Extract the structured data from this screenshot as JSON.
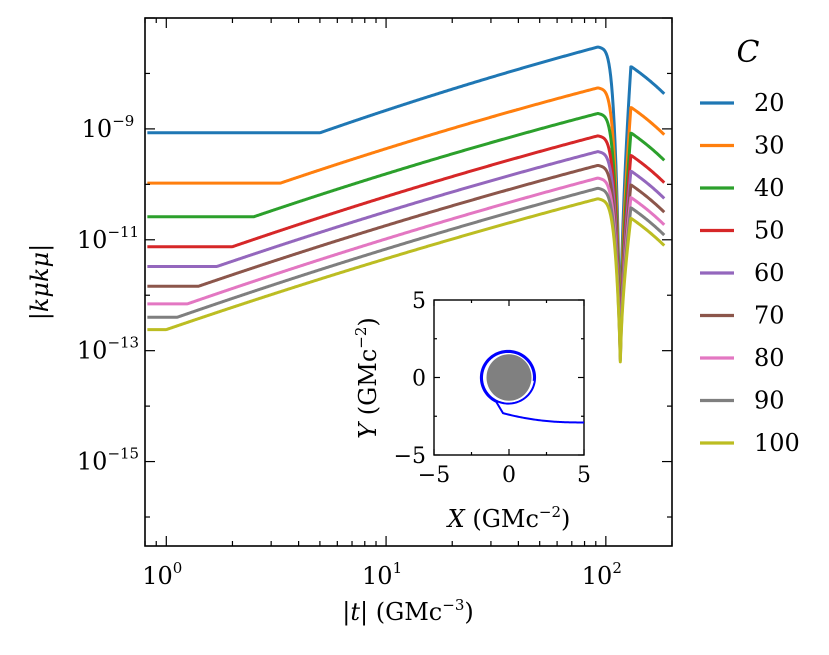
{
  "chart_data": [
    {
      "type": "line",
      "xscale": "log",
      "yscale": "log",
      "xlim": [
        0.8,
        200
      ],
      "ylim": [
        3e-17,
        1e-07
      ],
      "xlabel_pre": "|",
      "xlabel_var": "t",
      "xlabel_post": "| (GMc",
      "xlabel_exp": "−3",
      "xlabel_close": ")",
      "ylabel": "|kμkμ|",
      "x_ticks": [
        {
          "value": 1,
          "base": "10",
          "exp": "0"
        },
        {
          "value": 10,
          "base": "10",
          "exp": "1"
        },
        {
          "value": 100,
          "base": "10",
          "exp": "2"
        }
      ],
      "y_ticks": [
        {
          "value": 1e-09,
          "base": "10",
          "exp": "−9"
        },
        {
          "value": 1e-11,
          "base": "10",
          "exp": "−11"
        },
        {
          "value": 1e-13,
          "base": "10",
          "exp": "−13"
        },
        {
          "value": 1e-15,
          "base": "10",
          "exp": "−15"
        }
      ],
      "legend_title": "C",
      "legend_position": "outside-right",
      "series": [
        {
          "name": "20",
          "color": "#1f77b4",
          "plateau": 8.5e-10,
          "x_break": 5.0,
          "peak": 3e-08
        },
        {
          "name": "30",
          "color": "#ff7f0e",
          "plateau": 1.05e-10,
          "x_break": 3.3,
          "peak": 5.5e-09
        },
        {
          "name": "40",
          "color": "#2ca02c",
          "plateau": 2.6e-11,
          "x_break": 2.5,
          "peak": 1.9e-09
        },
        {
          "name": "50",
          "color": "#d62728",
          "plateau": 7.5e-12,
          "x_break": 2.0,
          "peak": 7.5e-10
        },
        {
          "name": "60",
          "color": "#9467bd",
          "plateau": 3.3e-12,
          "x_break": 1.7,
          "peak": 3.9e-10
        },
        {
          "name": "70",
          "color": "#8c564b",
          "plateau": 1.45e-12,
          "x_break": 1.4,
          "peak": 2.2e-10
        },
        {
          "name": "80",
          "color": "#e377c2",
          "plateau": 7e-13,
          "x_break": 1.25,
          "peak": 1.3e-10
        },
        {
          "name": "90",
          "color": "#7f7f7f",
          "plateau": 4e-13,
          "x_break": 1.12,
          "peak": 8.5e-11
        },
        {
          "name": "100",
          "color": "#bcbd22",
          "plateau": 2.4e-13,
          "x_break": 1.0,
          "peak": 5.5e-11
        }
      ]
    },
    {
      "type": "line",
      "role": "inset",
      "xlim": [
        -5,
        5
      ],
      "ylim": [
        -5,
        5
      ],
      "xlabel_var": "X",
      "xlabel_post": " (GMc",
      "xlabel_exp": "−2",
      "xlabel_close": ")",
      "ylabel_var": "Y",
      "ylabel_post": " (GMc",
      "ylabel_exp": "−2",
      "ylabel_close": ")",
      "x_ticks": [
        "−5",
        "0",
        "5"
      ],
      "y_ticks": [
        "5",
        "0",
        "−5"
      ],
      "disk_radius": 1.5,
      "disk_color": "#808080",
      "orbit_color": "#0000ff"
    }
  ]
}
